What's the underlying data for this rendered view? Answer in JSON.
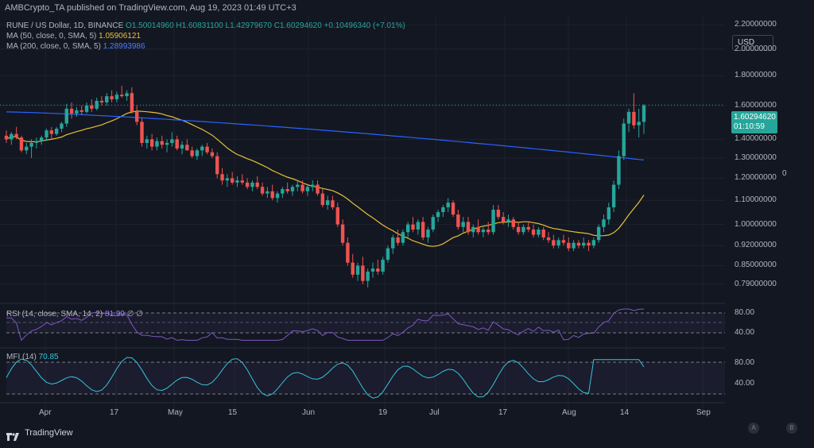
{
  "header": {
    "published": "AMBCrypto_TA published on TradingView.com, Aug 19, 2023 01:49 UTC+3"
  },
  "legend": {
    "symbol": "RUNE / US Dollar, 1D, BINANCE",
    "ohlc": "O1.50014960 H1.60831100 L1.42979670 C1.60294620 +0.10496340 (+7.01%)",
    "ma50_label": "MA (50, close, 0, SMA, 5)",
    "ma50_value": "1.05906121",
    "ma200_label": "MA (200, close, 0, SMA, 5)",
    "ma200_value": "1.28993986"
  },
  "price_axis": {
    "currency": "USD",
    "labels": [
      "2.20000000",
      "2.00000000",
      "1.80000000",
      "1.60000000",
      "1.40000000",
      "1.30000000",
      "1.20000000",
      "1.10000000",
      "1.00000000",
      "0.92000000",
      "0.85000000",
      "0.79000000"
    ],
    "current_price": "1.60294620",
    "countdown": "01:10:59",
    "side_marker": "0"
  },
  "rsi": {
    "label": "RSI (14, close, SMA, 14, 2)",
    "value": "81.99",
    "extra": "∅ ∅",
    "ticks": [
      "80.00",
      "40.00"
    ]
  },
  "mfi": {
    "label": "MFI (14)",
    "value": "70.85",
    "ticks": [
      "80.00",
      "40.00"
    ]
  },
  "time_axis": {
    "labels": [
      "Apr",
      "17",
      "May",
      "15",
      "Jun",
      "19",
      "Jul",
      "17",
      "Aug",
      "14",
      "Sep"
    ]
  },
  "footer": {
    "brand": "TradingView",
    "btn_a": "A",
    "btn_b": "B"
  },
  "colors": {
    "up": "#26a69a",
    "down": "#ef5350",
    "ma50": "#e8c036",
    "ma200": "#2962ff",
    "rsi": "#7e57c2",
    "mfi": "#31c7d8"
  },
  "chart_data": {
    "type": "candlestick",
    "x_range": [
      "Mar 28, 2023",
      "Aug 19, 2023"
    ],
    "y_log": true,
    "candles": [
      [
        1.42,
        1.45,
        1.38,
        1.4
      ],
      [
        1.4,
        1.44,
        1.37,
        1.43
      ],
      [
        1.43,
        1.47,
        1.4,
        1.41
      ],
      [
        1.41,
        1.42,
        1.33,
        1.34
      ],
      [
        1.34,
        1.38,
        1.32,
        1.36
      ],
      [
        1.36,
        1.4,
        1.3,
        1.38
      ],
      [
        1.38,
        1.41,
        1.35,
        1.39
      ],
      [
        1.39,
        1.42,
        1.37,
        1.41
      ],
      [
        1.41,
        1.46,
        1.39,
        1.45
      ],
      [
        1.45,
        1.47,
        1.4,
        1.43
      ],
      [
        1.43,
        1.47,
        1.42,
        1.46
      ],
      [
        1.46,
        1.5,
        1.44,
        1.49
      ],
      [
        1.49,
        1.61,
        1.47,
        1.58
      ],
      [
        1.58,
        1.62,
        1.52,
        1.55
      ],
      [
        1.55,
        1.59,
        1.53,
        1.57
      ],
      [
        1.57,
        1.6,
        1.54,
        1.56
      ],
      [
        1.56,
        1.62,
        1.55,
        1.6
      ],
      [
        1.6,
        1.64,
        1.56,
        1.58
      ],
      [
        1.58,
        1.65,
        1.57,
        1.63
      ],
      [
        1.63,
        1.66,
        1.6,
        1.62
      ],
      [
        1.62,
        1.68,
        1.6,
        1.66
      ],
      [
        1.66,
        1.7,
        1.62,
        1.64
      ],
      [
        1.64,
        1.69,
        1.62,
        1.67
      ],
      [
        1.67,
        1.73,
        1.65,
        1.66
      ],
      [
        1.66,
        1.7,
        1.63,
        1.68
      ],
      [
        1.68,
        1.72,
        1.55,
        1.56
      ],
      [
        1.56,
        1.6,
        1.48,
        1.5
      ],
      [
        1.5,
        1.52,
        1.36,
        1.38
      ],
      [
        1.38,
        1.42,
        1.35,
        1.4
      ],
      [
        1.4,
        1.43,
        1.34,
        1.36
      ],
      [
        1.36,
        1.41,
        1.34,
        1.39
      ],
      [
        1.39,
        1.42,
        1.35,
        1.37
      ],
      [
        1.37,
        1.4,
        1.33,
        1.38
      ],
      [
        1.38,
        1.44,
        1.36,
        1.4
      ],
      [
        1.4,
        1.42,
        1.34,
        1.35
      ],
      [
        1.35,
        1.39,
        1.32,
        1.37
      ],
      [
        1.37,
        1.4,
        1.34,
        1.34
      ],
      [
        1.34,
        1.36,
        1.3,
        1.31
      ],
      [
        1.31,
        1.35,
        1.29,
        1.34
      ],
      [
        1.34,
        1.37,
        1.31,
        1.36
      ],
      [
        1.36,
        1.38,
        1.32,
        1.33
      ],
      [
        1.33,
        1.35,
        1.3,
        1.31
      ],
      [
        1.31,
        1.33,
        1.2,
        1.22
      ],
      [
        1.22,
        1.25,
        1.17,
        1.19
      ],
      [
        1.19,
        1.22,
        1.16,
        1.2
      ],
      [
        1.2,
        1.23,
        1.17,
        1.18
      ],
      [
        1.18,
        1.21,
        1.16,
        1.19
      ],
      [
        1.19,
        1.22,
        1.17,
        1.18
      ],
      [
        1.18,
        1.2,
        1.15,
        1.16
      ],
      [
        1.16,
        1.19,
        1.14,
        1.18
      ],
      [
        1.18,
        1.21,
        1.15,
        1.16
      ],
      [
        1.16,
        1.18,
        1.12,
        1.13
      ],
      [
        1.13,
        1.16,
        1.11,
        1.14
      ],
      [
        1.14,
        1.17,
        1.1,
        1.11
      ],
      [
        1.11,
        1.14,
        1.09,
        1.13
      ],
      [
        1.13,
        1.16,
        1.11,
        1.15
      ],
      [
        1.15,
        1.18,
        1.13,
        1.14
      ],
      [
        1.14,
        1.17,
        1.12,
        1.16
      ],
      [
        1.16,
        1.19,
        1.14,
        1.17
      ],
      [
        1.17,
        1.19,
        1.13,
        1.14
      ],
      [
        1.14,
        1.17,
        1.12,
        1.16
      ],
      [
        1.16,
        1.19,
        1.14,
        1.17
      ],
      [
        1.17,
        1.19,
        1.12,
        1.13
      ],
      [
        1.13,
        1.15,
        1.07,
        1.08
      ],
      [
        1.08,
        1.12,
        1.06,
        1.1
      ],
      [
        1.1,
        1.12,
        1.06,
        1.07
      ],
      [
        1.07,
        1.09,
        0.99,
        1.0
      ],
      [
        1.0,
        1.02,
        0.92,
        0.93
      ],
      [
        0.93,
        0.95,
        0.85,
        0.86
      ],
      [
        0.86,
        0.89,
        0.81,
        0.82
      ],
      [
        0.82,
        0.86,
        0.8,
        0.85
      ],
      [
        0.85,
        0.88,
        0.79,
        0.8
      ],
      [
        0.8,
        0.84,
        0.78,
        0.83
      ],
      [
        0.83,
        0.86,
        0.81,
        0.84
      ],
      [
        0.84,
        0.87,
        0.82,
        0.83
      ],
      [
        0.83,
        0.88,
        0.82,
        0.87
      ],
      [
        0.87,
        0.92,
        0.86,
        0.91
      ],
      [
        0.91,
        0.96,
        0.89,
        0.95
      ],
      [
        0.95,
        0.98,
        0.92,
        0.93
      ],
      [
        0.93,
        0.98,
        0.92,
        0.97
      ],
      [
        0.97,
        1.01,
        0.95,
        1.0
      ],
      [
        1.0,
        1.03,
        0.97,
        0.98
      ],
      [
        0.98,
        1.02,
        0.96,
        1.01
      ],
      [
        1.01,
        1.03,
        0.94,
        0.95
      ],
      [
        0.95,
        0.99,
        0.93,
        0.98
      ],
      [
        0.98,
        1.04,
        0.97,
        1.03
      ],
      [
        1.03,
        1.06,
        1.01,
        1.05
      ],
      [
        1.05,
        1.08,
        1.03,
        1.07
      ],
      [
        1.07,
        1.11,
        1.05,
        1.09
      ],
      [
        1.09,
        1.1,
        1.03,
        1.04
      ],
      [
        1.04,
        1.06,
        0.98,
        0.99
      ],
      [
        0.99,
        1.03,
        0.97,
        1.01
      ],
      [
        1.01,
        1.03,
        0.96,
        0.97
      ],
      [
        0.97,
        1.0,
        0.95,
        0.99
      ],
      [
        0.99,
        1.02,
        0.96,
        0.97
      ],
      [
        0.97,
        0.99,
        0.95,
        0.98
      ],
      [
        0.98,
        1.01,
        0.96,
        0.97
      ],
      [
        0.97,
        1.08,
        0.96,
        1.06
      ],
      [
        1.06,
        1.08,
        1.02,
        1.03
      ],
      [
        1.03,
        1.05,
        1.0,
        1.01
      ],
      [
        1.01,
        1.04,
        0.99,
        1.02
      ],
      [
        1.02,
        1.03,
        0.98,
        0.99
      ],
      [
        0.99,
        1.01,
        0.96,
        0.97
      ],
      [
        0.97,
        1.0,
        0.96,
        0.99
      ],
      [
        0.99,
        1.01,
        0.97,
        0.98
      ],
      [
        0.98,
        1.0,
        0.95,
        0.96
      ],
      [
        0.96,
        0.99,
        0.95,
        0.98
      ],
      [
        0.98,
        0.99,
        0.94,
        0.95
      ],
      [
        0.95,
        0.97,
        0.93,
        0.94
      ],
      [
        0.94,
        0.96,
        0.91,
        0.92
      ],
      [
        0.92,
        0.95,
        0.91,
        0.94
      ],
      [
        0.94,
        0.96,
        0.92,
        0.93
      ],
      [
        0.93,
        0.95,
        0.9,
        0.91
      ],
      [
        0.91,
        0.94,
        0.9,
        0.93
      ],
      [
        0.93,
        0.94,
        0.91,
        0.92
      ],
      [
        0.92,
        0.95,
        0.91,
        0.93
      ],
      [
        0.93,
        0.94,
        0.9,
        0.92
      ],
      [
        0.92,
        0.95,
        0.91,
        0.94
      ],
      [
        0.94,
        1.0,
        0.93,
        0.99
      ],
      [
        0.99,
        1.04,
        0.97,
        1.02
      ],
      [
        1.02,
        1.09,
        1.0,
        1.07
      ],
      [
        1.07,
        1.19,
        1.05,
        1.17
      ],
      [
        1.17,
        1.34,
        1.15,
        1.31
      ],
      [
        1.31,
        1.52,
        1.29,
        1.49
      ],
      [
        1.49,
        1.58,
        1.44,
        1.56
      ],
      [
        1.56,
        1.68,
        1.46,
        1.48
      ],
      [
        1.48,
        1.58,
        1.41,
        1.5
      ],
      [
        1.5,
        1.61,
        1.43,
        1.6
      ]
    ],
    "ma50_current": 1.05906121,
    "ma200_current": 1.28993986,
    "rsi_current": 81.99,
    "mfi_current": 70.85
  }
}
